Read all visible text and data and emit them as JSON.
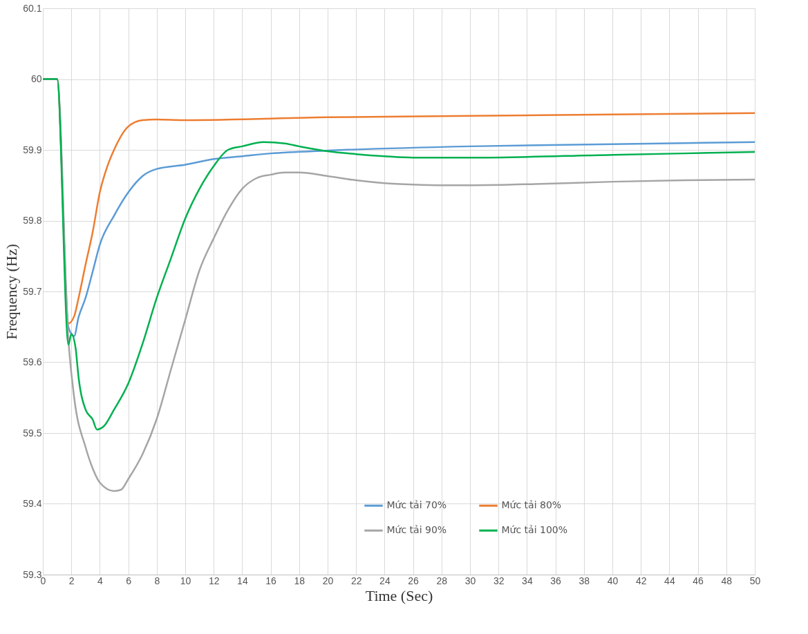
{
  "chart_data": {
    "type": "line",
    "xlabel": "Time (Sec)",
    "ylabel": "Frequency  (Hz)",
    "xlim": [
      0,
      50
    ],
    "xticks": [
      0,
      2,
      4,
      6,
      8,
      10,
      12,
      14,
      16,
      18,
      20,
      22,
      24,
      26,
      28,
      30,
      32,
      34,
      36,
      38,
      40,
      42,
      44,
      46,
      48,
      50
    ],
    "ylim": [
      59.3,
      60.1
    ],
    "yticks": [
      59.3,
      59.4,
      59.5,
      59.6,
      59.7,
      59.8,
      59.9,
      60,
      60.1
    ],
    "grid": true,
    "legend": "bottom",
    "marker": "none",
    "line_style": "solid",
    "series": [
      {
        "name": "Mức tải 70%",
        "color": "#5b9bd5",
        "x": [
          0,
          1,
          1.8,
          2.2,
          2.5,
          3,
          3.5,
          4,
          5,
          6,
          7,
          8,
          10,
          12,
          14,
          16,
          20,
          30,
          40,
          50
        ],
        "values": [
          60,
          60,
          59.649,
          59.637,
          59.663,
          59.691,
          59.728,
          59.766,
          59.807,
          59.84,
          59.863,
          59.873,
          59.879,
          59.887,
          59.891,
          59.895,
          59.899,
          59.905,
          59.908,
          59.911
        ]
      },
      {
        "name": "Mức tải 80%",
        "color": "#ed7d31",
        "x": [
          0,
          1,
          1.8,
          2.2,
          2.5,
          3,
          3.5,
          4,
          4.5,
          5,
          6,
          7,
          8,
          10,
          20,
          30,
          40,
          50
        ],
        "values": [
          60,
          60,
          59.655,
          59.665,
          59.69,
          59.738,
          59.784,
          59.84,
          59.875,
          59.9,
          59.933,
          59.942,
          59.943,
          59.942,
          59.946,
          59.948,
          59.95,
          59.952
        ]
      },
      {
        "name": "Mức tải 90%",
        "color": "#a5a5a5",
        "x": [
          0,
          1,
          1.8,
          2.2,
          3,
          3.5,
          4,
          5,
          5.5,
          6,
          7,
          8,
          9,
          10,
          11,
          12,
          13,
          14,
          15,
          16,
          17,
          18,
          20,
          22,
          24,
          26,
          28,
          30,
          35,
          40,
          45,
          50
        ],
        "values": [
          60,
          60,
          59.63,
          59.55,
          59.48,
          59.45,
          59.43,
          59.418,
          59.42,
          59.435,
          59.47,
          59.52,
          59.59,
          59.66,
          59.73,
          59.775,
          59.815,
          59.845,
          59.86,
          59.865,
          59.868,
          59.868,
          59.863,
          59.857,
          59.853,
          59.851,
          59.85,
          59.85,
          59.852,
          59.855,
          59.857,
          59.858
        ]
      },
      {
        "name": "Mức tải 100%",
        "color": "#00b050",
        "x": [
          0,
          1,
          1.8,
          2,
          2.3,
          2.5,
          3,
          3.5,
          3.8,
          4.3,
          5,
          6,
          7,
          8,
          9,
          10,
          11,
          12,
          13,
          14,
          15.5,
          17,
          18,
          20,
          22,
          24,
          26,
          30,
          40,
          50
        ],
        "values": [
          60,
          60,
          59.625,
          59.64,
          59.62,
          59.58,
          59.533,
          59.519,
          59.505,
          59.51,
          59.533,
          59.57,
          59.626,
          59.691,
          59.747,
          59.803,
          59.845,
          59.877,
          59.9,
          59.905,
          59.911,
          59.909,
          59.905,
          59.898,
          59.894,
          59.891,
          59.889,
          59.889,
          59.893,
          59.897
        ]
      }
    ]
  }
}
